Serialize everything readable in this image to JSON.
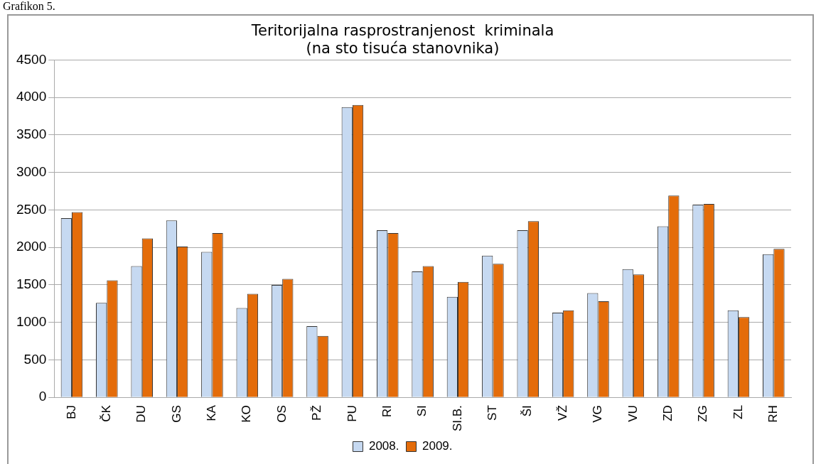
{
  "chart_data": {
    "type": "bar",
    "title": [
      "Teritorijalna rasprostranjenost  kriminala",
      "(na sto tisuća stanovnika)"
    ],
    "annotations": [
      "Grafikon 5."
    ],
    "categories": [
      "BJ",
      "ČK",
      "DU",
      "GS",
      "KA",
      "KO",
      "OS",
      "PŽ",
      "PU",
      "RI",
      "SI",
      "SI.B.",
      "ST",
      "ŠI",
      "VŽ",
      "VG",
      "VU",
      "ZD",
      "ZG",
      "ZL",
      "RH"
    ],
    "series": [
      {
        "name": "2008.",
        "color": "#c6d9f1",
        "values": [
          2390,
          1260,
          1750,
          2360,
          1940,
          1190,
          1500,
          950,
          3870,
          2230,
          1680,
          1340,
          1890,
          2230,
          1130,
          1390,
          1710,
          2280,
          2570,
          1160,
          1910
        ]
      },
      {
        "name": "2009.",
        "color": "#e46c0a",
        "values": [
          2470,
          1560,
          2120,
          2010,
          2190,
          1380,
          1580,
          820,
          3900,
          2190,
          1750,
          1540,
          1780,
          2350,
          1160,
          1280,
          1640,
          2690,
          2580,
          1070,
          1980
        ]
      }
    ],
    "ylim": [
      0,
      4500
    ],
    "yticks": [
      0,
      500,
      1000,
      1500,
      2000,
      2500,
      3000,
      3500,
      4000,
      4500
    ],
    "grid": "y",
    "legend": "bottom"
  }
}
